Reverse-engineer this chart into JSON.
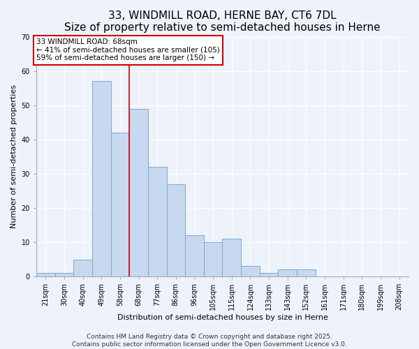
{
  "title1": "33, WINDMILL ROAD, HERNE BAY, CT6 7DL",
  "title2": "Size of property relative to semi-detached houses in Herne",
  "xlabel": "Distribution of semi-detached houses by size in Herne",
  "ylabel": "Number of semi-detached properties",
  "categories": [
    "21sqm",
    "30sqm",
    "40sqm",
    "49sqm",
    "58sqm",
    "68sqm",
    "77sqm",
    "86sqm",
    "96sqm",
    "105sqm",
    "115sqm",
    "124sqm",
    "133sqm",
    "143sqm",
    "152sqm",
    "161sqm",
    "171sqm",
    "180sqm",
    "199sqm",
    "208sqm"
  ],
  "values": [
    1,
    1,
    5,
    57,
    42,
    49,
    32,
    27,
    12,
    10,
    11,
    3,
    1,
    2,
    2,
    0,
    0,
    0,
    0,
    0
  ],
  "bar_color": "#c8d8ef",
  "bar_edge_color": "#7aaad0",
  "vline_index": 5,
  "vline_color": "#cc0000",
  "annotation_text": "33 WINDMILL ROAD: 68sqm\n← 41% of semi-detached houses are smaller (105)\n59% of semi-detached houses are larger (150) →",
  "annotation_box_color": "#ffffff",
  "annotation_box_edge": "#cc0000",
  "ylim": [
    0,
    70
  ],
  "yticks": [
    0,
    10,
    20,
    30,
    40,
    50,
    60,
    70
  ],
  "footer1": "Contains HM Land Registry data © Crown copyright and database right 2025.",
  "footer2": "Contains public sector information licensed under the Open Government Licence v3.0.",
  "bg_color": "#eef2fb",
  "plot_bg_color": "#eef2fb",
  "grid_color": "#ffffff",
  "title1_fontsize": 11,
  "title2_fontsize": 9.5,
  "label_fontsize": 8,
  "tick_fontsize": 7,
  "annotation_fontsize": 7.5,
  "footer_fontsize": 6.5
}
